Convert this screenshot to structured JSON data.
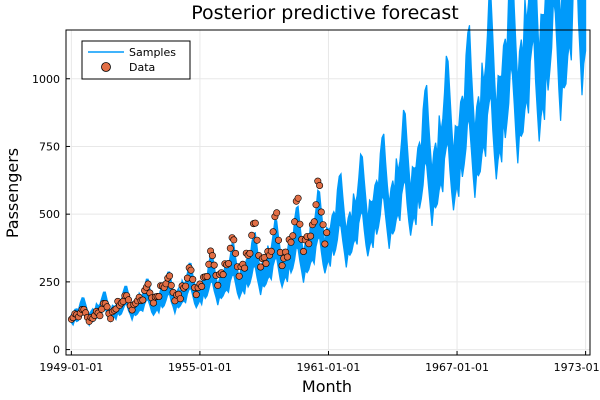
{
  "chart_data": {
    "type": "line",
    "title": "Posterior predictive forecast",
    "xlabel": "Month",
    "ylabel": "Passengers",
    "xlim": [
      "1948-10-01",
      "1973-03-15"
    ],
    "ylim": [
      -20,
      1180
    ],
    "x_ticks": [
      "1949-01-01",
      "1955-01-01",
      "1961-01-01",
      "1967-01-01",
      "1973-01-01"
    ],
    "y_ticks": [
      0,
      250,
      500,
      750,
      1000
    ],
    "grid": true,
    "legend_position": "top-left",
    "legend": [
      {
        "label": "Samples",
        "kind": "line"
      },
      {
        "label": "Data",
        "kind": "marker"
      }
    ],
    "band": {
      "name": "Samples",
      "color": "#009AFA",
      "x_start": "1949-01-01",
      "x_end": "1973-01-01",
      "note_lower_upper": "envelope of posterior predictive sample paths"
    },
    "series": [
      {
        "name": "Data",
        "kind": "scatter",
        "color": "#E26F46",
        "x_start": "1949-01",
        "frequency": "monthly",
        "values": [
          112,
          118,
          132,
          129,
          121,
          135,
          148,
          148,
          136,
          119,
          104,
          118,
          115,
          126,
          141,
          135,
          125,
          149,
          170,
          170,
          158,
          133,
          114,
          140,
          145,
          150,
          178,
          163,
          172,
          178,
          199,
          199,
          184,
          162,
          146,
          166,
          171,
          180,
          193,
          181,
          183,
          218,
          230,
          242,
          209,
          191,
          172,
          194,
          196,
          196,
          236,
          235,
          229,
          243,
          264,
          272,
          237,
          211,
          180,
          201,
          204,
          188,
          235,
          227,
          234,
          264,
          302,
          293,
          259,
          229,
          203,
          229,
          242,
          233,
          267,
          269,
          270,
          315,
          364,
          347,
          312,
          274,
          237,
          278,
          284,
          277,
          317,
          313,
          318,
          374,
          413,
          405,
          355,
          306,
          271,
          306,
          315,
          301,
          356,
          348,
          355,
          422,
          465,
          467,
          404,
          347,
          305,
          336,
          340,
          318,
          362,
          348,
          363,
          435,
          491,
          505,
          404,
          359,
          310,
          337,
          360,
          342,
          406,
          396,
          420,
          472,
          548,
          559,
          463,
          407,
          362,
          405,
          417,
          391,
          419,
          461,
          472,
          535,
          622,
          606,
          508,
          461,
          390,
          432
        ]
      }
    ]
  }
}
